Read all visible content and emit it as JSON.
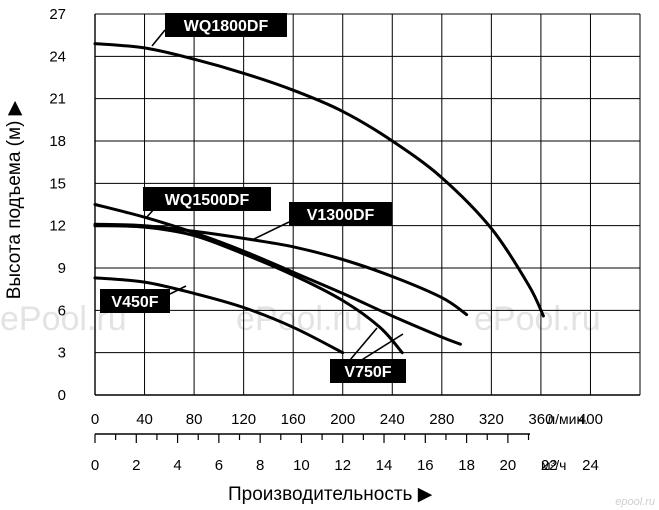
{
  "chart_data": {
    "type": "line",
    "ylabel": "Высота подъема (м)",
    "ylabel_arrow": "▶",
    "xlabel": "Производительность",
    "xlabel_arrow": "▶",
    "ylim": [
      0,
      27
    ],
    "y_ticks": [
      "0",
      "3",
      "6",
      "9",
      "12",
      "15",
      "18",
      "21",
      "24",
      "27"
    ],
    "x_lpm": {
      "ticks": [
        "0",
        "40",
        "80",
        "120",
        "160",
        "200",
        "240",
        "280",
        "320",
        "360",
        "400"
      ],
      "unit": "л/мин.",
      "xlim": [
        0,
        440
      ]
    },
    "x_m3h": {
      "ticks": [
        "0",
        "2",
        "4",
        "6",
        "8",
        "10",
        "12",
        "14",
        "16",
        "18",
        "20",
        "22",
        "24"
      ],
      "unit": "м³/ч"
    },
    "grid": true,
    "series": [
      {
        "name": "WQ1800DF",
        "points": [
          [
            0,
            24.9
          ],
          [
            40,
            24.6
          ],
          [
            80,
            23.8
          ],
          [
            120,
            22.8
          ],
          [
            160,
            21.6
          ],
          [
            200,
            20.1
          ],
          [
            240,
            18.0
          ],
          [
            280,
            15.4
          ],
          [
            320,
            11.8
          ],
          [
            350,
            7.8
          ],
          [
            362,
            5.6
          ]
        ]
      },
      {
        "name": "WQ1500DF",
        "points": [
          [
            0,
            13.5
          ],
          [
            40,
            12.6
          ],
          [
            80,
            11.5
          ],
          [
            120,
            10.2
          ],
          [
            160,
            8.7
          ],
          [
            200,
            7.2
          ],
          [
            240,
            5.6
          ],
          [
            280,
            4.1
          ],
          [
            295,
            3.6
          ]
        ]
      },
      {
        "name": "V1300DF",
        "points": [
          [
            0,
            12.1
          ],
          [
            40,
            12.0
          ],
          [
            80,
            11.6
          ],
          [
            120,
            11.1
          ],
          [
            160,
            10.5
          ],
          [
            200,
            9.6
          ],
          [
            240,
            8.4
          ],
          [
            280,
            6.9
          ],
          [
            300,
            5.7
          ]
        ]
      },
      {
        "name": "V750F",
        "points": [
          [
            0,
            12.0
          ],
          [
            40,
            11.9
          ],
          [
            80,
            11.3
          ],
          [
            120,
            10.0
          ],
          [
            160,
            8.5
          ],
          [
            200,
            6.7
          ],
          [
            230,
            4.8
          ],
          [
            248,
            3.0
          ]
        ]
      },
      {
        "name": "V450F",
        "points": [
          [
            0,
            8.3
          ],
          [
            40,
            8.0
          ],
          [
            80,
            7.2
          ],
          [
            120,
            6.2
          ],
          [
            160,
            4.8
          ],
          [
            200,
            3.0
          ]
        ]
      }
    ],
    "watermark": "ePool.ru",
    "corner_logo": "epool.ru"
  }
}
